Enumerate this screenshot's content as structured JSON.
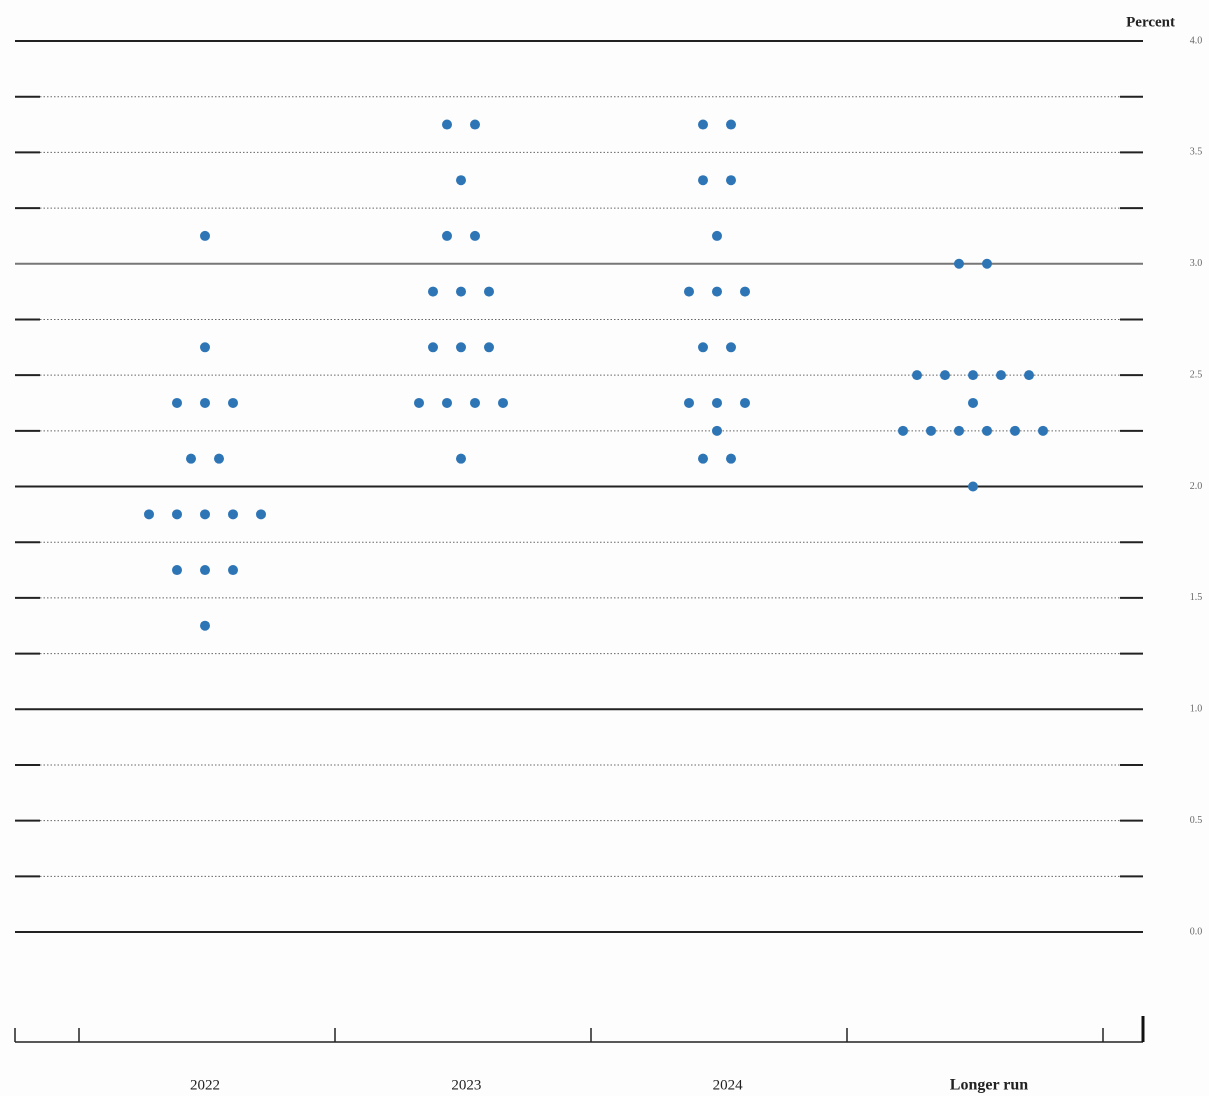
{
  "chart_data": {
    "type": "dot",
    "y_label": "Percent",
    "categories": [
      "2022",
      "2023",
      "2024",
      "Longer run"
    ],
    "values": [
      [
        3.125,
        2.625,
        2.375,
        2.375,
        2.375,
        2.125,
        2.125,
        1.875,
        1.875,
        1.875,
        1.875,
        1.875,
        1.625,
        1.625,
        1.625,
        1.375
      ],
      [
        3.625,
        3.625,
        3.375,
        3.125,
        3.125,
        2.875,
        2.875,
        2.875,
        2.625,
        2.625,
        2.625,
        2.375,
        2.375,
        2.375,
        2.375,
        2.125
      ],
      [
        3.625,
        3.625,
        3.375,
        3.375,
        3.125,
        2.875,
        2.875,
        2.875,
        2.625,
        2.625,
        2.375,
        2.375,
        2.375,
        2.25,
        2.125,
        2.125
      ],
      [
        3.0,
        3.0,
        2.5,
        2.5,
        2.5,
        2.5,
        2.5,
        2.375,
        2.25,
        2.25,
        2.25,
        2.25,
        2.25,
        2.25,
        2.0
      ]
    ],
    "color": "#2e75b6",
    "ylim": [
      0,
      4
    ],
    "yticks": [
      {
        "value": 0,
        "label": "0.0"
      },
      0.5,
      {
        "value": 1,
        "label": "1.0"
      },
      1.5,
      {
        "value": 2,
        "label": "2.0"
      },
      2.5,
      {
        "value": 3,
        "label": "3.0"
      },
      3.5,
      {
        "value": 4,
        "label": "4.0"
      }
    ],
    "ygrid_minor": [
      0.25,
      0.75,
      1.25,
      1.75,
      2.25,
      2.75,
      3.25,
      3.75
    ],
    "grid": true
  }
}
